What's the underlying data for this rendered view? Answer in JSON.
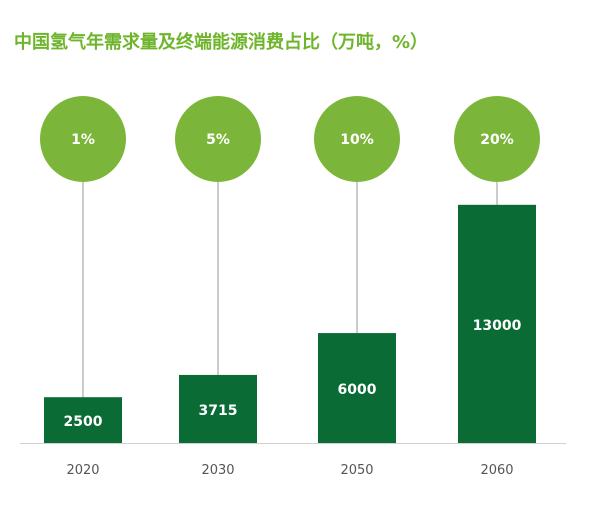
{
  "chart_data": {
    "type": "bar",
    "title": "中国氢气年需求量及终端能源消费占比（万吨，%）",
    "categories": [
      "2020",
      "2030",
      "2050",
      "2060"
    ],
    "series": [
      {
        "values": [
          2500,
          3715,
          6000,
          13000
        ],
        "value_labels": [
          "2500",
          "3715",
          "6000",
          "13000"
        ]
      }
    ],
    "share_labels": [
      "1%",
      "5%",
      "10%",
      "20%"
    ],
    "shares": [
      1,
      5,
      10,
      20
    ],
    "xlabel": "",
    "ylabel": "",
    "ylim": [
      0,
      14300
    ],
    "grid": false,
    "legend": "none",
    "colors": {
      "bar": "#0b6b35",
      "circle": "#7bb63a",
      "title": "#6fb52c",
      "axis_line": "#d0d0d0",
      "connector": "#9a9a9a",
      "tick_text": "#555555",
      "label_text": "#ffffff"
    }
  }
}
